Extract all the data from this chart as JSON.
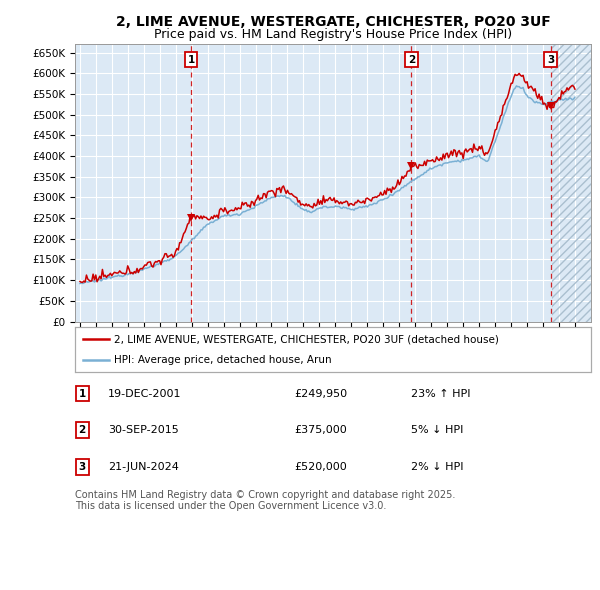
{
  "title": "2, LIME AVENUE, WESTERGATE, CHICHESTER, PO20 3UF",
  "subtitle": "Price paid vs. HM Land Registry's House Price Index (HPI)",
  "ylabel_ticks": [
    "£0",
    "£50K",
    "£100K",
    "£150K",
    "£200K",
    "£250K",
    "£300K",
    "£350K",
    "£400K",
    "£450K",
    "£500K",
    "£550K",
    "£600K",
    "£650K"
  ],
  "ytick_vals": [
    0,
    50000,
    100000,
    150000,
    200000,
    250000,
    300000,
    350000,
    400000,
    450000,
    500000,
    550000,
    600000,
    650000
  ],
  "xlim_start": 1994.7,
  "xlim_end": 2027.0,
  "ylim_min": 0,
  "ylim_max": 670000,
  "sale_prices": [
    249950,
    375000,
    520000
  ],
  "sale_labels": [
    "1",
    "2",
    "3"
  ],
  "sale_date_strs": [
    "19-DEC-2001",
    "30-SEP-2015",
    "21-JUN-2024"
  ],
  "sale_decimal": [
    2001.96,
    2015.75,
    2024.47
  ],
  "sale_hpi_changes": [
    "23% ↑ HPI",
    "5% ↓ HPI",
    "2% ↓ HPI"
  ],
  "legend_line1": "2, LIME AVENUE, WESTERGATE, CHICHESTER, PO20 3UF (detached house)",
  "legend_line2": "HPI: Average price, detached house, Arun",
  "footer": "Contains HM Land Registry data © Crown copyright and database right 2025.\nThis data is licensed under the Open Government Licence v3.0.",
  "red_color": "#cc0000",
  "blue_color": "#7ab0d4",
  "background_color": "#dce9f5",
  "hatch_color": "#b8cfe0",
  "grid_color": "#ffffff",
  "title_fontsize": 10,
  "subtitle_fontsize": 9,
  "tick_fontsize": 7.5,
  "legend_fontsize": 7.5,
  "table_fontsize": 8,
  "footer_fontsize": 7
}
